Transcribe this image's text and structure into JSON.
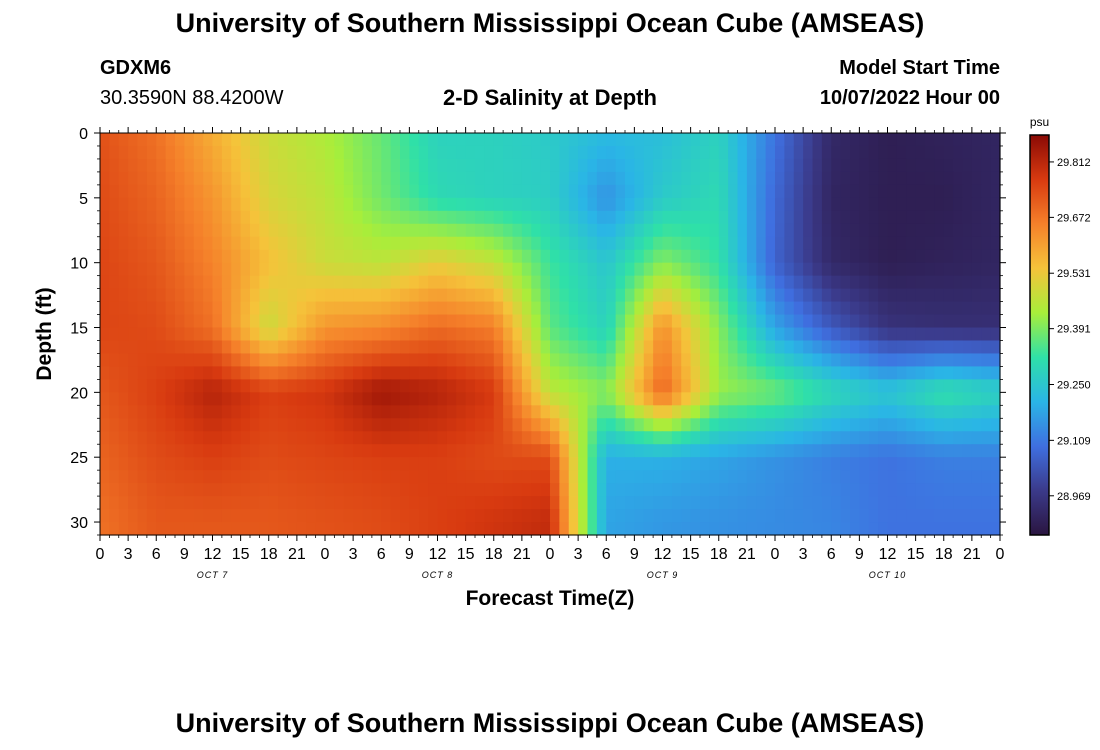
{
  "header": {
    "title": "University of Southern Mississippi Ocean Cube (AMSEAS)",
    "station": "GDXM6",
    "coords": "30.3590N  88.4200W",
    "subtitle": "2-D Salinity at Depth",
    "model_label": "Model Start Time",
    "model_start": "10/07/2022 Hour 00"
  },
  "footer": {
    "title_repeat": "University of Southern Mississippi Ocean Cube (AMSEAS)"
  },
  "chart_data": {
    "type": "heatmap",
    "xlabel": "Forecast Time(Z)",
    "ylabel": "Depth (ft)",
    "x_hours": [
      0,
      96
    ],
    "x_tick_labels": [
      "0",
      "3",
      "6",
      "9",
      "12",
      "15",
      "18",
      "21",
      "0",
      "3",
      "6",
      "9",
      "12",
      "15",
      "18",
      "21",
      "0",
      "3",
      "6",
      "9",
      "12",
      "15",
      "18",
      "21",
      "0",
      "3",
      "6",
      "9",
      "12",
      "15",
      "18",
      "21",
      "0"
    ],
    "day_labels": [
      {
        "label": "OCT 7",
        "hour": 12
      },
      {
        "label": "OCT 8",
        "hour": 36
      },
      {
        "label": "OCT 9",
        "hour": 60
      },
      {
        "label": "OCT 10",
        "hour": 84
      }
    ],
    "ylim": [
      0,
      31
    ],
    "y_ticks": [
      0,
      5,
      10,
      15,
      20,
      25,
      30
    ],
    "colorbar": {
      "unit": "psu",
      "ticks": [
        29.812,
        29.672,
        29.531,
        29.391,
        29.25,
        29.109,
        28.969
      ],
      "range": [
        28.87,
        29.88
      ],
      "colors": [
        "#2a1540",
        "#3b3a8a",
        "#3f6fe0",
        "#2ab5e6",
        "#2fe0a8",
        "#a8ee3a",
        "#f5c33a",
        "#f5802a",
        "#d83a10",
        "#8a0a05"
      ]
    },
    "hours": [
      0,
      6,
      12,
      18,
      24,
      30,
      36,
      42,
      48,
      54,
      60,
      66,
      72,
      78,
      84,
      90,
      96
    ],
    "depths": [
      0,
      5,
      10,
      15,
      20,
      25,
      30
    ],
    "values": [
      [
        29.73,
        29.68,
        29.58,
        29.48,
        29.44,
        29.37,
        29.28,
        29.28,
        29.26,
        29.22,
        29.23,
        29.28,
        29.1,
        28.93,
        28.9,
        28.91,
        28.92
      ],
      [
        29.74,
        29.7,
        29.62,
        29.5,
        29.46,
        29.38,
        29.3,
        29.28,
        29.27,
        29.15,
        29.26,
        29.3,
        29.08,
        28.92,
        28.9,
        28.9,
        28.92
      ],
      [
        29.75,
        29.72,
        29.65,
        29.55,
        29.48,
        29.46,
        29.52,
        29.47,
        29.33,
        29.25,
        29.4,
        29.32,
        29.07,
        28.93,
        28.9,
        28.91,
        28.92
      ],
      [
        29.75,
        29.74,
        29.68,
        29.48,
        29.62,
        29.64,
        29.69,
        29.66,
        29.36,
        29.28,
        29.63,
        29.4,
        29.18,
        29.05,
        28.96,
        28.95,
        28.95
      ],
      [
        29.72,
        29.76,
        29.82,
        29.76,
        29.78,
        29.85,
        29.82,
        29.77,
        29.46,
        29.4,
        29.7,
        29.42,
        29.38,
        29.3,
        29.25,
        29.32,
        29.28
      ],
      [
        29.7,
        29.74,
        29.76,
        29.74,
        29.75,
        29.76,
        29.76,
        29.74,
        29.74,
        29.2,
        29.2,
        29.18,
        29.15,
        29.12,
        29.1,
        29.12,
        29.12
      ],
      [
        29.68,
        29.72,
        29.72,
        29.72,
        29.73,
        29.74,
        29.76,
        29.78,
        29.8,
        29.18,
        29.16,
        29.15,
        29.14,
        29.13,
        29.1,
        29.1,
        29.1
      ]
    ]
  }
}
